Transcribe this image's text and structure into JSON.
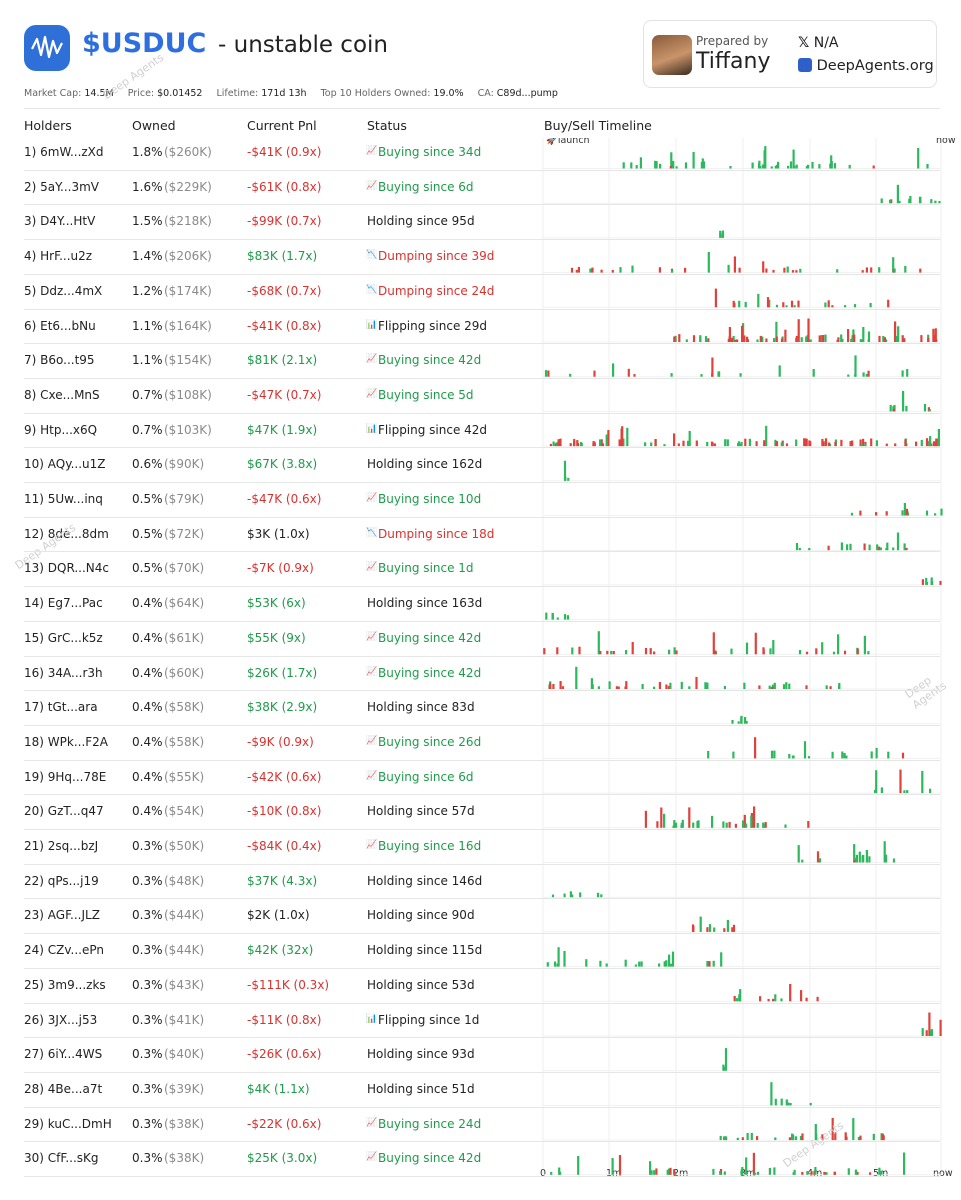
{
  "header": {
    "token": "$USDUC",
    "subtitle": "- unstable coin",
    "stats": [
      {
        "label": "Market Cap:",
        "value": "14.5M"
      },
      {
        "label": "Price:",
        "value": "$0.01452"
      },
      {
        "label": "Lifetime:",
        "value": "171d 13h"
      },
      {
        "label": "Top 10 Holders Owned:",
        "value": "19.0%"
      },
      {
        "label": "CA:",
        "value": "C89d...pump"
      }
    ]
  },
  "card": {
    "prepared_by": "Prepared by",
    "name": "Tiffany",
    "x": "N/A",
    "site": "DeepAgents.org"
  },
  "columns": {
    "holders": "Holders",
    "owned": "Owned",
    "pnl": "Current Pnl",
    "status": "Status",
    "timeline": "Buy/Sell Timeline"
  },
  "timeline": {
    "start": "🚀launch",
    "end": "now",
    "axis": [
      "0",
      "1m",
      "2m",
      "3m",
      "4m",
      "5m",
      "now"
    ]
  },
  "watermark": "Deep Agents",
  "colors": {
    "buy": "#2cb85c",
    "sell": "#e0413a",
    "accent": "#2d6fe0"
  },
  "holders": [
    {
      "holder": "1) 6mW...zXd",
      "pct": "1.8%",
      "usd": "($260K)",
      "pnl": "-$41K (0.9x)",
      "pnlc": "red",
      "status": "Buying since 34d",
      "sc": "green",
      "icon": "up"
    },
    {
      "holder": "2) 5aY...3mV",
      "pct": "1.6%",
      "usd": "($229K)",
      "pnl": "-$61K (0.8x)",
      "pnlc": "red",
      "status": "Buying since 6d",
      "sc": "green",
      "icon": "up"
    },
    {
      "holder": "3) D4Y...HtV",
      "pct": "1.5%",
      "usd": "($218K)",
      "pnl": "-$99K (0.7x)",
      "pnlc": "red",
      "status": "Holding since 95d",
      "sc": "dark",
      "icon": ""
    },
    {
      "holder": "4) HrF...u2z",
      "pct": "1.4%",
      "usd": "($206K)",
      "pnl": "$83K (1.7x)",
      "pnlc": "green",
      "status": "Dumping since 39d",
      "sc": "red",
      "icon": "down"
    },
    {
      "holder": "5) Ddz...4mX",
      "pct": "1.2%",
      "usd": "($174K)",
      "pnl": "-$68K (0.7x)",
      "pnlc": "red",
      "status": "Dumping since 24d",
      "sc": "red",
      "icon": "down"
    },
    {
      "holder": "6) Et6...bNu",
      "pct": "1.1%",
      "usd": "($164K)",
      "pnl": "-$41K (0.8x)",
      "pnlc": "red",
      "status": "Flipping since 29d",
      "sc": "dark",
      "icon": "flip"
    },
    {
      "holder": "7) B6o...t95",
      "pct": "1.1%",
      "usd": "($154K)",
      "pnl": "$81K (2.1x)",
      "pnlc": "green",
      "status": "Buying since 42d",
      "sc": "green",
      "icon": "up"
    },
    {
      "holder": "8) Cxe...MnS",
      "pct": "0.7%",
      "usd": "($108K)",
      "pnl": "-$47K (0.7x)",
      "pnlc": "red",
      "status": "Buying since 5d",
      "sc": "green",
      "icon": "up"
    },
    {
      "holder": "9) Htp...x6Q",
      "pct": "0.7%",
      "usd": "($103K)",
      "pnl": "$47K (1.9x)",
      "pnlc": "green",
      "status": "Flipping since 42d",
      "sc": "dark",
      "icon": "flip"
    },
    {
      "holder": "10) AQy...u1Z",
      "pct": "0.6%",
      "usd": "($90K)",
      "pnl": "$67K (3.8x)",
      "pnlc": "green",
      "status": "Holding since 162d",
      "sc": "dark",
      "icon": ""
    },
    {
      "holder": "11) 5Uw...inq",
      "pct": "0.5%",
      "usd": "($79K)",
      "pnl": "-$47K (0.6x)",
      "pnlc": "red",
      "status": "Buying since 10d",
      "sc": "green",
      "icon": "up"
    },
    {
      "holder": "12) 8de...8dm",
      "pct": "0.5%",
      "usd": "($72K)",
      "pnl": "$3K (1.0x)",
      "pnlc": "dark",
      "status": "Dumping since 18d",
      "sc": "red",
      "icon": "down"
    },
    {
      "holder": "13) DQR...N4c",
      "pct": "0.5%",
      "usd": "($70K)",
      "pnl": "-$7K (0.9x)",
      "pnlc": "red",
      "status": "Buying since 1d",
      "sc": "green",
      "icon": "up"
    },
    {
      "holder": "14) Eg7...Pac",
      "pct": "0.4%",
      "usd": "($64K)",
      "pnl": "$53K (6x)",
      "pnlc": "green",
      "status": "Holding since 163d",
      "sc": "dark",
      "icon": ""
    },
    {
      "holder": "15) GrC...k5z",
      "pct": "0.4%",
      "usd": "($61K)",
      "pnl": "$55K (9x)",
      "pnlc": "green",
      "status": "Buying since 42d",
      "sc": "green",
      "icon": "up"
    },
    {
      "holder": "16) 34A...r3h",
      "pct": "0.4%",
      "usd": "($60K)",
      "pnl": "$26K (1.7x)",
      "pnlc": "green",
      "status": "Buying since 42d",
      "sc": "green",
      "icon": "up"
    },
    {
      "holder": "17) tGt...ara",
      "pct": "0.4%",
      "usd": "($58K)",
      "pnl": "$38K (2.9x)",
      "pnlc": "green",
      "status": "Holding since 83d",
      "sc": "dark",
      "icon": ""
    },
    {
      "holder": "18) WPk...F2A",
      "pct": "0.4%",
      "usd": "($58K)",
      "pnl": "-$9K (0.9x)",
      "pnlc": "red",
      "status": "Buying since 26d",
      "sc": "green",
      "icon": "up"
    },
    {
      "holder": "19) 9Hq...78E",
      "pct": "0.4%",
      "usd": "($55K)",
      "pnl": "-$42K (0.6x)",
      "pnlc": "red",
      "status": "Buying since 6d",
      "sc": "green",
      "icon": "up"
    },
    {
      "holder": "20) GzT...q47",
      "pct": "0.4%",
      "usd": "($54K)",
      "pnl": "-$10K (0.8x)",
      "pnlc": "red",
      "status": "Holding since 57d",
      "sc": "dark",
      "icon": ""
    },
    {
      "holder": "21) 2sq...bzJ",
      "pct": "0.3%",
      "usd": "($50K)",
      "pnl": "-$84K (0.4x)",
      "pnlc": "red",
      "status": "Buying since 16d",
      "sc": "green",
      "icon": "up"
    },
    {
      "holder": "22) qPs...j19",
      "pct": "0.3%",
      "usd": "($48K)",
      "pnl": "$37K (4.3x)",
      "pnlc": "green",
      "status": "Holding since 146d",
      "sc": "dark",
      "icon": ""
    },
    {
      "holder": "23) AGF...JLZ",
      "pct": "0.3%",
      "usd": "($44K)",
      "pnl": "$2K (1.0x)",
      "pnlc": "dark",
      "status": "Holding since 90d",
      "sc": "dark",
      "icon": ""
    },
    {
      "holder": "24) CZv...ePn",
      "pct": "0.3%",
      "usd": "($44K)",
      "pnl": "$42K (32x)",
      "pnlc": "green",
      "status": "Holding since 115d",
      "sc": "dark",
      "icon": ""
    },
    {
      "holder": "25) 3m9...zks",
      "pct": "0.3%",
      "usd": "($43K)",
      "pnl": "-$111K (0.3x)",
      "pnlc": "red",
      "status": "Holding since 53d",
      "sc": "dark",
      "icon": ""
    },
    {
      "holder": "26) 3JX...j53",
      "pct": "0.3%",
      "usd": "($41K)",
      "pnl": "-$11K (0.8x)",
      "pnlc": "red",
      "status": "Flipping since 1d",
      "sc": "dark",
      "icon": "flip"
    },
    {
      "holder": "27) 6iY...4WS",
      "pct": "0.3%",
      "usd": "($40K)",
      "pnl": "-$26K (0.6x)",
      "pnlc": "red",
      "status": "Holding since 93d",
      "sc": "dark",
      "icon": ""
    },
    {
      "holder": "28) 4Be...a7t",
      "pct": "0.3%",
      "usd": "($39K)",
      "pnl": "$4K (1.1x)",
      "pnlc": "green",
      "status": "Holding since 51d",
      "sc": "dark",
      "icon": ""
    },
    {
      "holder": "29) kuC...DmH",
      "pct": "0.3%",
      "usd": "($38K)",
      "pnl": "-$22K (0.6x)",
      "pnlc": "red",
      "status": "Buying since 24d",
      "sc": "green",
      "icon": "up"
    },
    {
      "holder": "30) CfF...sKg",
      "pct": "0.3%",
      "usd": "($38K)",
      "pnl": "$25K (3.0x)",
      "pnlc": "green",
      "status": "Buying since 42d",
      "sc": "green",
      "icon": "up"
    }
  ]
}
